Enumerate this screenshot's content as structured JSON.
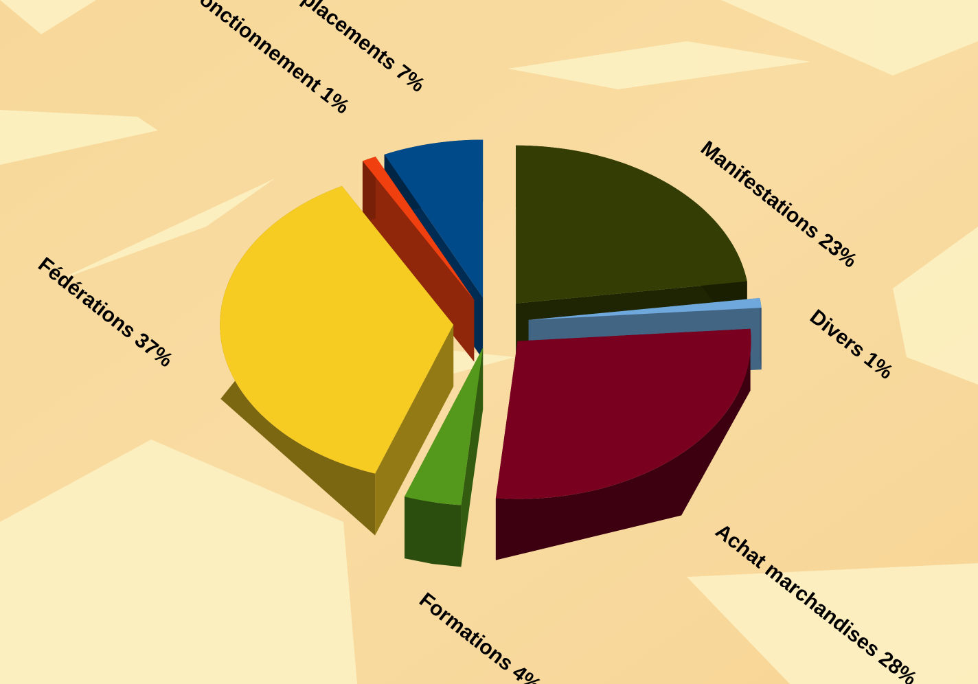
{
  "chart_data": {
    "type": "pie",
    "style": "3d-exploded",
    "categories": [
      "Manifestations",
      "Divers",
      "Achat marchandises",
      "Formations",
      "Fédérations",
      "Fonctionnement",
      "Déplacements"
    ],
    "values": [
      23,
      1,
      28,
      4,
      37,
      1,
      7
    ],
    "value_labels": [
      "23%",
      "1%",
      "28%",
      "4%",
      "37%",
      "1%",
      "7%"
    ],
    "colors": [
      "#333d04",
      "#6fa8dc",
      "#7a0020",
      "#55991c",
      "#f6cc22",
      "#f04010",
      "#004a8a"
    ]
  }
}
